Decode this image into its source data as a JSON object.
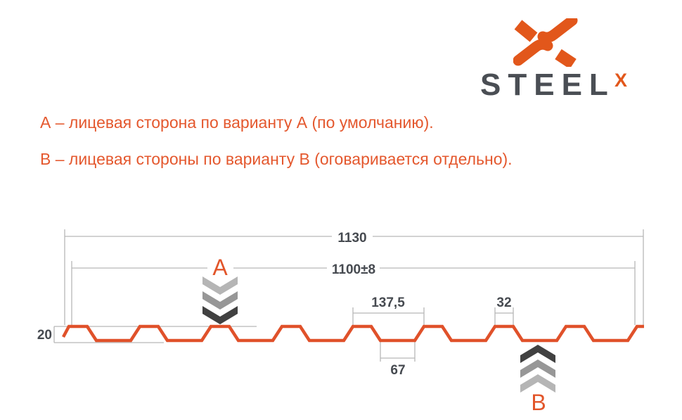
{
  "logo": {
    "brand": "STEEL",
    "sup": "X"
  },
  "notes": {
    "line_a": "А – лицевая сторона по варианту А (по умолчанию).",
    "line_b": "В – лицевая стороны по варианту В (оговаривается отдельно)."
  },
  "markers": {
    "front_a": "А",
    "front_b": "В"
  },
  "dimensions": {
    "total_width": "1130",
    "cover_width": "1100±8",
    "pitch": "137,5",
    "rib_top": "32",
    "valley_bottom": "67",
    "profile_height": "20"
  },
  "profile_mm": {
    "total_width": 1130,
    "cover_width": 1100,
    "pitch": 137.5,
    "rib_top_width": 32,
    "valley_width": 67,
    "height": 20
  },
  "colors": {
    "brand_orange": "#E2571B",
    "profile_orange": "#E0512A",
    "note_orange": "#E4582E",
    "logo_text_gray": "#4A4E54",
    "dim_text_gray": "#464A50",
    "dim_line_gray": "#b6b6b6",
    "chevron_light": "#b5b5b5",
    "chevron_mid": "#979797",
    "chevron_dark": "#414141"
  }
}
